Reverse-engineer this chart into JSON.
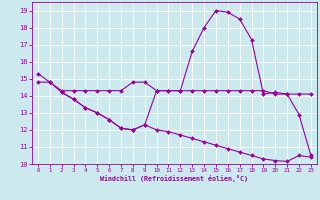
{
  "xlabel": "Windchill (Refroidissement éolien,°C)",
  "xlim": [
    -0.5,
    23.5
  ],
  "ylim": [
    10,
    19.5
  ],
  "yticks": [
    10,
    11,
    12,
    13,
    14,
    15,
    16,
    17,
    18,
    19
  ],
  "xticks": [
    0,
    1,
    2,
    3,
    4,
    5,
    6,
    7,
    8,
    9,
    10,
    11,
    12,
    13,
    14,
    15,
    16,
    17,
    18,
    19,
    20,
    21,
    22,
    23
  ],
  "background_color": "#cce9ed",
  "line_color": "#990099",
  "grid_color": "#ffffff",
  "series1_x": [
    0,
    1,
    2,
    3,
    4,
    5,
    6,
    7,
    8,
    9,
    10,
    11,
    12,
    13,
    14,
    15,
    16,
    17,
    18,
    19,
    20,
    21,
    22,
    23
  ],
  "series1_y": [
    15.3,
    14.8,
    14.2,
    13.8,
    13.3,
    13.0,
    12.6,
    12.1,
    12.0,
    12.3,
    14.3,
    14.3,
    14.3,
    16.6,
    18.0,
    19.0,
    18.9,
    18.5,
    17.3,
    14.1,
    14.2,
    14.1,
    12.9,
    10.5
  ],
  "series2_x": [
    0,
    1,
    2,
    3,
    4,
    5,
    6,
    7,
    8,
    9,
    10,
    11,
    12,
    13,
    14,
    15,
    16,
    17,
    18,
    19,
    20,
    21,
    22,
    23
  ],
  "series2_y": [
    14.8,
    14.8,
    14.3,
    14.3,
    14.3,
    14.3,
    14.3,
    14.3,
    14.8,
    14.8,
    14.3,
    14.3,
    14.3,
    14.3,
    14.3,
    14.3,
    14.3,
    14.3,
    14.3,
    14.3,
    14.1,
    14.1,
    14.1,
    14.1
  ],
  "series3_x": [
    2,
    3,
    4,
    5,
    6,
    7,
    8,
    9,
    10,
    11,
    12,
    13,
    14,
    15,
    16,
    17,
    18,
    19,
    20,
    21,
    22,
    23
  ],
  "series3_y": [
    14.2,
    13.8,
    13.3,
    13.0,
    12.6,
    12.1,
    12.0,
    12.3,
    12.0,
    11.9,
    11.7,
    11.5,
    11.3,
    11.1,
    10.9,
    10.7,
    10.5,
    10.3,
    10.2,
    10.15,
    10.5,
    10.4
  ]
}
